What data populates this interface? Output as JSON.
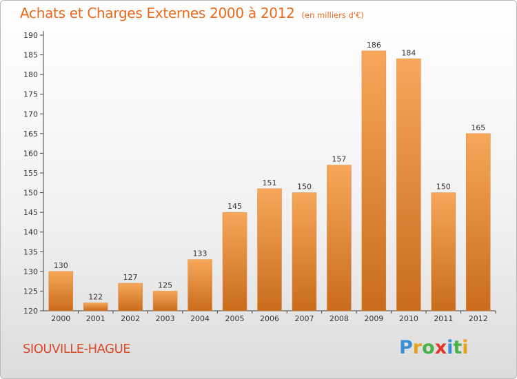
{
  "header": {
    "title": "Achats et Charges Externes 2000 à 2012",
    "unit": "(en milliers d'€)"
  },
  "footer": {
    "place": "SIOUVILLE-HAGUE",
    "logo": {
      "letters": [
        "P",
        "r",
        "o",
        "x",
        "i",
        "t",
        "i"
      ]
    }
  },
  "colors": {
    "bar_top": "#f6a75a",
    "bar_bottom": "#c96c1c",
    "title": "#ea6a1a",
    "place": "#d94a2c"
  },
  "chart_data": {
    "type": "bar",
    "categories": [
      "2000",
      "2001",
      "2002",
      "2003",
      "2004",
      "2005",
      "2006",
      "2007",
      "2008",
      "2009",
      "2010",
      "2011",
      "2012"
    ],
    "values": [
      130,
      122,
      127,
      125,
      133,
      145,
      151,
      150,
      157,
      186,
      184,
      150,
      165
    ],
    "title": "Achats et Charges Externes 2000 à 2012",
    "ylim": [
      120,
      190
    ],
    "yticks": [
      120,
      125,
      130,
      135,
      140,
      145,
      150,
      155,
      160,
      165,
      170,
      175,
      180,
      185,
      190
    ],
    "grid": false,
    "legend": false
  }
}
